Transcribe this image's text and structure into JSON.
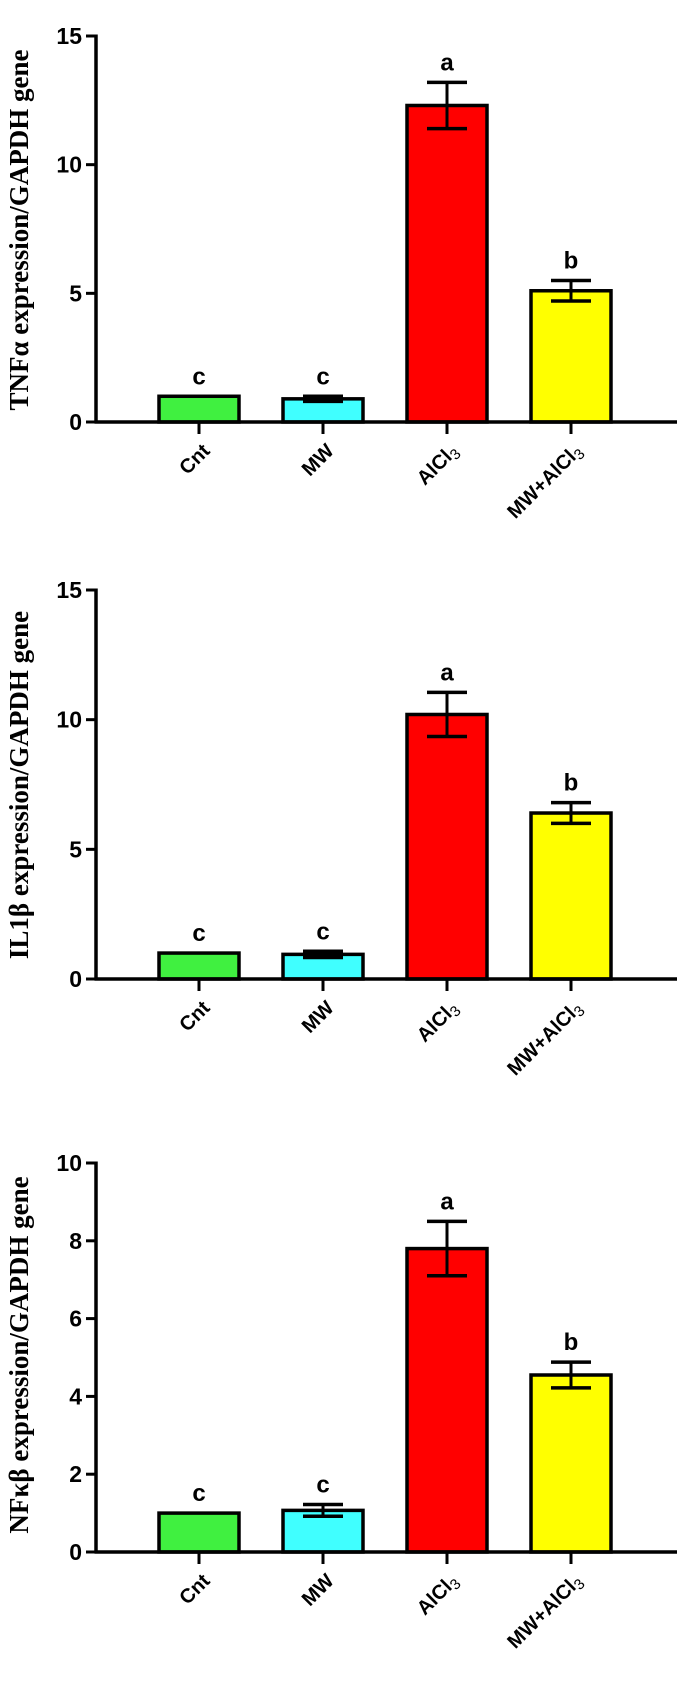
{
  "chart_data": [
    {
      "type": "bar",
      "title": "",
      "xlabel": "",
      "ylabel": "TNFα expression/GAPDH gene",
      "ylim": [
        0,
        15
      ],
      "yticks": [
        0,
        5,
        10,
        15
      ],
      "categories": [
        "Cnt",
        "MW",
        "AlCl3",
        "MW+AlCl3"
      ],
      "category_display": [
        {
          "main": "Cnt",
          "sub": ""
        },
        {
          "main": "MW",
          "sub": ""
        },
        {
          "main": "AlCl",
          "sub": "3"
        },
        {
          "main": "MW+AlCl",
          "sub": "3"
        }
      ],
      "values": [
        1.0,
        0.9,
        12.3,
        5.1
      ],
      "error": [
        0.0,
        0.1,
        0.9,
        0.4
      ],
      "significance": [
        "c",
        "c",
        "a",
        "b"
      ],
      "colors": [
        "#40f040",
        "#40ffff",
        "#ff0000",
        "#ffff00"
      ],
      "grid": false,
      "legend": null
    },
    {
      "type": "bar",
      "title": "",
      "xlabel": "",
      "ylabel": "IL1β expression/GAPDH gene",
      "ylim": [
        0,
        15
      ],
      "yticks": [
        0,
        5,
        10,
        15
      ],
      "categories": [
        "Cnt",
        "MW",
        "AlCl3",
        "MW+AlCl3"
      ],
      "category_display": [
        {
          "main": "Cnt",
          "sub": ""
        },
        {
          "main": "MW",
          "sub": ""
        },
        {
          "main": "AlCl",
          "sub": "3"
        },
        {
          "main": "MW+AlCl",
          "sub": "3"
        }
      ],
      "values": [
        1.0,
        0.95,
        10.2,
        6.4
      ],
      "error": [
        0.0,
        0.12,
        0.85,
        0.4
      ],
      "significance": [
        "c",
        "c",
        "a",
        "b"
      ],
      "colors": [
        "#40f040",
        "#40ffff",
        "#ff0000",
        "#ffff00"
      ],
      "grid": false,
      "legend": null
    },
    {
      "type": "bar",
      "title": "",
      "xlabel": "",
      "ylabel": "NFκβ expression/GAPDH gene",
      "ylim": [
        0,
        10
      ],
      "yticks": [
        0,
        2,
        4,
        6,
        8,
        10
      ],
      "categories": [
        "Cnt",
        "MW",
        "AlCl3",
        "MW+AlCl3"
      ],
      "category_display": [
        {
          "main": "Cnt",
          "sub": ""
        },
        {
          "main": "MW",
          "sub": ""
        },
        {
          "main": "AlCl",
          "sub": "3"
        },
        {
          "main": "MW+AlCl",
          "sub": "3"
        }
      ],
      "values": [
        1.0,
        1.07,
        7.8,
        4.55
      ],
      "error": [
        0.0,
        0.15,
        0.7,
        0.33
      ],
      "significance": [
        "c",
        "c",
        "a",
        "b"
      ],
      "colors": [
        "#40f040",
        "#40ffff",
        "#ff0000",
        "#ffff00"
      ],
      "grid": false,
      "legend": null
    }
  ],
  "panels": [
    {
      "name": "tnf-alpha-panel"
    },
    {
      "name": "il1-beta-panel"
    },
    {
      "name": "nfkb-panel"
    }
  ]
}
